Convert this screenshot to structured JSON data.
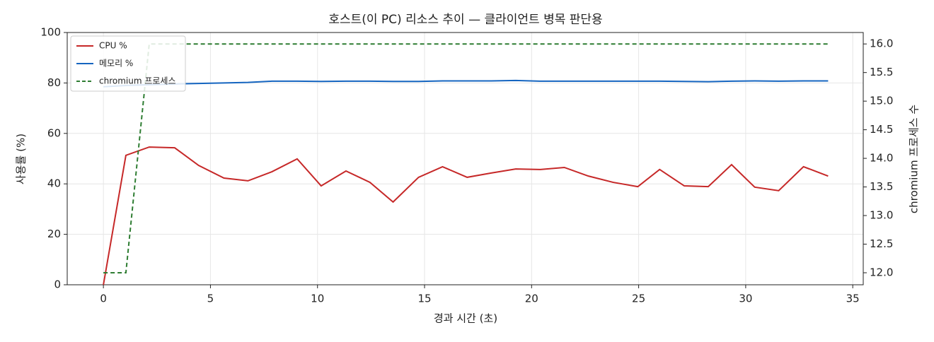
{
  "chart_data": {
    "type": "line",
    "title": "호스트(이 PC) 리소스 추이 — 클라이언트 병목 판단용",
    "x_label": "경과 시간 (초)",
    "y_label": "사용률 (%)",
    "y2_label": "chromium 프로세스 수",
    "x": [
      0,
      1.05,
      2.14,
      3.33,
      4.45,
      5.63,
      6.75,
      7.87,
      9.05,
      10.17,
      11.33,
      12.45,
      13.53,
      14.72,
      15.84,
      16.99,
      18.11,
      19.26,
      20.41,
      21.53,
      22.65,
      23.81,
      24.96,
      25.98,
      27.13,
      28.25,
      29.34,
      30.42,
      31.54,
      32.7,
      33.85
    ],
    "series": [
      {
        "name": "CPU %",
        "color": "#c62828",
        "linestyle": "solid",
        "values": [
          0,
          51.3,
          54.6,
          54.3,
          47.3,
          42.3,
          41.2,
          44.8,
          49.9,
          39.2,
          45.1,
          40.6,
          32.8,
          42.6,
          46.8,
          42.6,
          44.3,
          45.9,
          45.7,
          46.5,
          43.1,
          40.6,
          38.9,
          45.7,
          39.2,
          38.9,
          47.6,
          38.7,
          37.3,
          46.8,
          43.1
        ]
      },
      {
        "name": "메모리 %",
        "color": "#1565c0",
        "linestyle": "solid",
        "values": [
          78.5,
          79,
          79.3,
          79.6,
          79.8,
          80,
          80.2,
          80.7,
          80.7,
          80.6,
          80.7,
          80.7,
          80.6,
          80.6,
          80.8,
          80.8,
          80.8,
          81,
          80.7,
          80.7,
          80.7,
          80.7,
          80.7,
          80.7,
          80.6,
          80.5,
          80.7,
          80.8,
          80.7,
          80.8,
          80.8
        ]
      },
      {
        "name": "chromium 프로세스",
        "color": "#2e7d32",
        "linestyle": "dashed",
        "axis": "y2",
        "values": [
          12,
          12,
          16,
          16,
          16,
          16,
          16,
          16,
          16,
          16,
          16,
          16,
          16,
          16,
          16,
          16,
          16,
          16,
          16,
          16,
          16,
          16,
          16,
          16,
          16,
          16,
          16,
          16,
          16,
          16,
          16
        ]
      }
    ],
    "xlim": [
      -1.69,
      35.49
    ],
    "xticks": [
      0,
      5,
      10,
      15,
      20,
      25,
      30,
      35
    ],
    "ylim": [
      0,
      100
    ],
    "yticks": [
      0,
      20,
      40,
      60,
      80,
      100
    ],
    "y2lim": [
      11.79,
      16.2
    ],
    "y2ticks": [
      {
        "value": 12,
        "label": "12.0"
      },
      {
        "value": 12.5,
        "label": "12.5"
      },
      {
        "value": 13,
        "label": "13.0"
      },
      {
        "value": 13.5,
        "label": "13.5"
      },
      {
        "value": 14,
        "label": "14.0"
      },
      {
        "value": 14.5,
        "label": "14.5"
      },
      {
        "value": 15,
        "label": "15.0"
      },
      {
        "value": 15.5,
        "label": "15.5"
      },
      {
        "value": 16,
        "label": "16.0"
      }
    ],
    "grid": true,
    "legend": "upper-left"
  }
}
